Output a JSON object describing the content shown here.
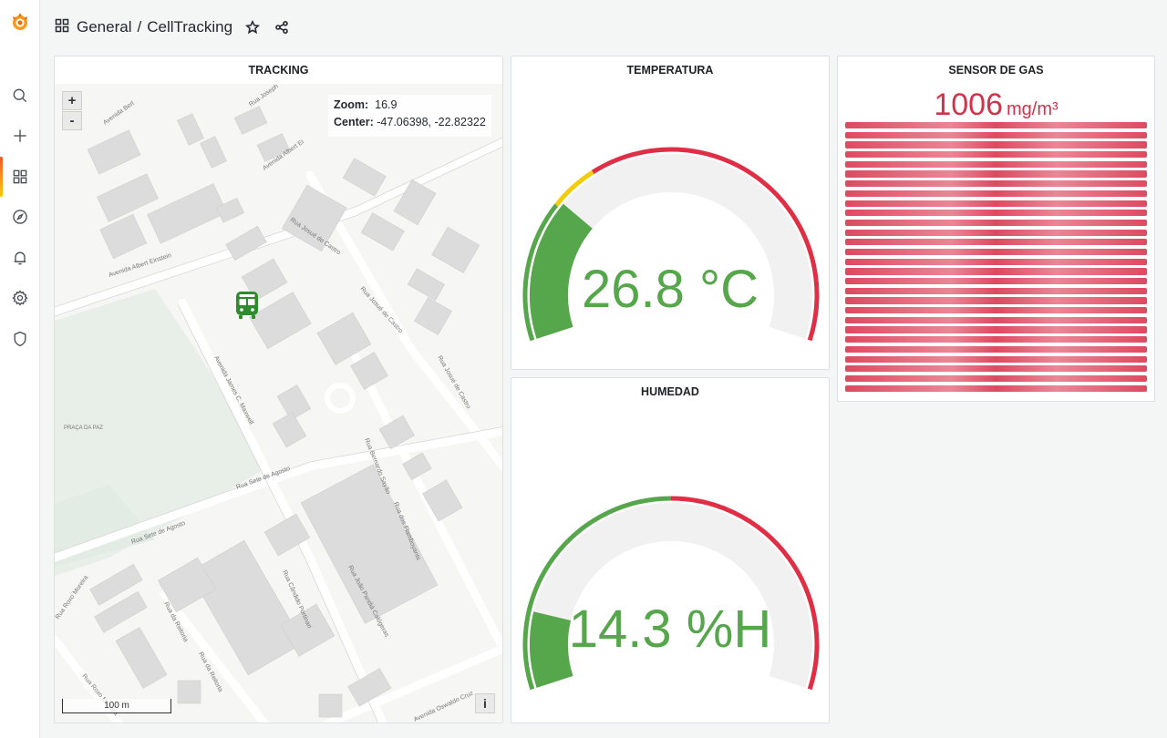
{
  "breadcrumb": {
    "folder": "General",
    "separator": "/",
    "dashboard": "CellTracking"
  },
  "sidebar": {
    "items": [
      {
        "name": "search-icon"
      },
      {
        "name": "plus-icon"
      },
      {
        "name": "dashboards-icon",
        "active": true
      },
      {
        "name": "explore-icon"
      },
      {
        "name": "bell-icon"
      },
      {
        "name": "gear-icon"
      },
      {
        "name": "shield-icon"
      }
    ]
  },
  "panels": {
    "tracking": {
      "title": "TRACKING",
      "zoom_in": "+",
      "zoom_out": "-",
      "zoom_label": "Zoom:",
      "zoom_value": "16.9",
      "center_label": "Center:",
      "center_value": "-47.06398, -22.82322",
      "scale_label": "100 m",
      "attribution": "i",
      "streets": [
        "Avenida Albert Einstein",
        "Rua Josué de Castro",
        "Avenida James C. Maxwell",
        "Rua Sete de Agosto",
        "Rua Bernardo Sayão",
        "Rua Cândido Portinari",
        "Rua João Pandiá Calógeras",
        "Avenida Oswaldo Cruz",
        "Rua dos Flamboyants",
        "PRAÇA DA PAZ",
        "Rua Roxo Moreira",
        "Rua da Reitoria"
      ]
    },
    "temperatura": {
      "title": "TEMPERATURA",
      "value": "26.8 °C",
      "fill_fraction": 0.27,
      "colors": {
        "green": "#56a64b",
        "yellow": "#f2cc0c",
        "red": "#e02f44"
      }
    },
    "humedad": {
      "title": "HUMEDAD",
      "value": "14.3 %H",
      "fill_fraction": 0.145,
      "colors": {
        "green": "#56a64b",
        "red": "#e02f44"
      }
    },
    "gas": {
      "title": "SENSOR DE GAS",
      "value": "1006",
      "unit": "mg/m³",
      "color": "#d3334a"
    }
  }
}
